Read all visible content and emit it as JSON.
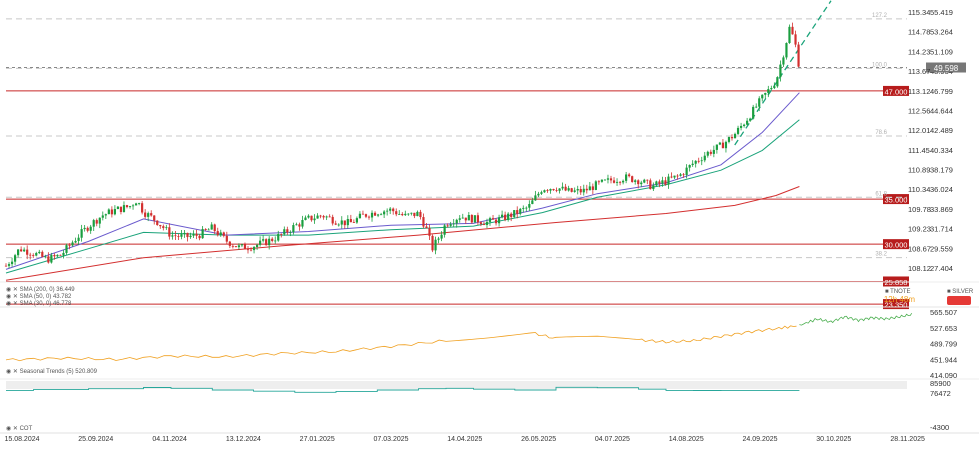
{
  "chart_data": {
    "type": "candlestick",
    "main": {
      "right_axis": [
        "55.419",
        "53.264",
        "51.109",
        "48.954",
        "46.799",
        "44.644",
        "42.489",
        "40.334",
        "38.179",
        "36.024",
        "33.869",
        "31.714",
        "29.559",
        "27.404"
      ],
      "left_axis": [
        "115.34",
        "114.78",
        "114.23",
        "113.67",
        "113.12",
        "112.56",
        "112.01",
        "111.45",
        "110.89",
        "110.34",
        "109.78",
        "109.23",
        "108.67",
        "108.12"
      ],
      "price_range": [
        25.8,
        56.2
      ],
      "last_price": "49.598",
      "horizontal_levels": [
        {
          "label": "47.000",
          "value": 47.0
        },
        {
          "label": "35.000",
          "value": 35.0
        },
        {
          "label": "30.000",
          "value": 30.0
        },
        {
          "label": "25.858",
          "value": 25.858
        },
        {
          "label": "23.350",
          "value": 23.35
        }
      ],
      "fib_levels": [
        {
          "label": "127.2",
          "value": 55.0
        },
        {
          "label": "100.0",
          "value": 49.5
        },
        {
          "label": "78.6",
          "value": 42.0
        },
        {
          "label": "61.8",
          "value": 35.2
        },
        {
          "label": "38.2",
          "value": 28.5
        }
      ],
      "legend": [
        {
          "text": "SMA (200, 0) 36.449",
          "color": "#d32f2f"
        },
        {
          "text": "SMA (50, 0) 43.782",
          "color": "#1aa37a"
        },
        {
          "text": "SMA (30, 0) 46.778",
          "color": "#6a5acd"
        }
      ],
      "symbols": [
        {
          "label": "TNOTE",
          "color": "#f0a020"
        },
        {
          "label": "SILVER",
          "color": "#1aa37a"
        }
      ],
      "countdown": "12h 48m",
      "close_series": [
        {
          "x": 0,
          "y": 27.6
        },
        {
          "x": 10,
          "y": 29.5
        },
        {
          "x": 20,
          "y": 29.0
        },
        {
          "x": 30,
          "y": 28.3
        },
        {
          "x": 40,
          "y": 28.8
        },
        {
          "x": 50,
          "y": 30.5
        },
        {
          "x": 60,
          "y": 32.0
        },
        {
          "x": 70,
          "y": 33.2
        },
        {
          "x": 80,
          "y": 33.8
        },
        {
          "x": 90,
          "y": 34.2
        },
        {
          "x": 95,
          "y": 34.9
        },
        {
          "x": 100,
          "y": 33.6
        },
        {
          "x": 110,
          "y": 32.5
        },
        {
          "x": 120,
          "y": 31.0
        },
        {
          "x": 130,
          "y": 30.8
        },
        {
          "x": 140,
          "y": 31.0
        },
        {
          "x": 150,
          "y": 31.8
        },
        {
          "x": 160,
          "y": 30.4
        },
        {
          "x": 170,
          "y": 29.6
        },
        {
          "x": 180,
          "y": 29.8
        },
        {
          "x": 190,
          "y": 30.3
        },
        {
          "x": 200,
          "y": 31.0
        },
        {
          "x": 210,
          "y": 32.0
        },
        {
          "x": 220,
          "y": 32.8
        },
        {
          "x": 230,
          "y": 33.2
        },
        {
          "x": 240,
          "y": 32.6
        },
        {
          "x": 250,
          "y": 32.3
        },
        {
          "x": 260,
          "y": 33.2
        },
        {
          "x": 270,
          "y": 33.6
        },
        {
          "x": 280,
          "y": 33.8
        },
        {
          "x": 290,
          "y": 33.1
        },
        {
          "x": 300,
          "y": 33.4
        },
        {
          "x": 305,
          "y": 32.0
        },
        {
          "x": 310,
          "y": 29.5
        },
        {
          "x": 315,
          "y": 30.8
        },
        {
          "x": 320,
          "y": 32.3
        },
        {
          "x": 330,
          "y": 33.1
        },
        {
          "x": 340,
          "y": 32.8
        },
        {
          "x": 350,
          "y": 32.4
        },
        {
          "x": 360,
          "y": 32.8
        },
        {
          "x": 370,
          "y": 33.4
        },
        {
          "x": 380,
          "y": 34.1
        },
        {
          "x": 390,
          "y": 36.2
        },
        {
          "x": 400,
          "y": 36.3
        },
        {
          "x": 410,
          "y": 35.8
        },
        {
          "x": 420,
          "y": 35.9
        },
        {
          "x": 430,
          "y": 36.6
        },
        {
          "x": 440,
          "y": 37.1
        },
        {
          "x": 450,
          "y": 37.4
        },
        {
          "x": 460,
          "y": 37.1
        },
        {
          "x": 470,
          "y": 36.4
        },
        {
          "x": 480,
          "y": 37.0
        },
        {
          "x": 490,
          "y": 37.6
        },
        {
          "x": 500,
          "y": 39.0
        },
        {
          "x": 510,
          "y": 40.1
        },
        {
          "x": 520,
          "y": 40.9
        },
        {
          "x": 530,
          "y": 42.2
        },
        {
          "x": 540,
          "y": 44.1
        },
        {
          "x": 550,
          "y": 46.2
        },
        {
          "x": 560,
          "y": 48.1
        },
        {
          "x": 566,
          "y": 51.5
        },
        {
          "x": 570,
          "y": 54.1
        },
        {
          "x": 574,
          "y": 52.2
        },
        {
          "x": 577,
          "y": 49.6
        }
      ],
      "sma200": [
        {
          "x": 0,
          "y": 26.0
        },
        {
          "x": 100,
          "y": 28.5
        },
        {
          "x": 200,
          "y": 29.8
        },
        {
          "x": 300,
          "y": 31.0
        },
        {
          "x": 400,
          "y": 32.4
        },
        {
          "x": 480,
          "y": 33.4
        },
        {
          "x": 530,
          "y": 34.3
        },
        {
          "x": 560,
          "y": 35.4
        },
        {
          "x": 577,
          "y": 36.4
        }
      ],
      "sma50": [
        {
          "x": 0,
          "y": 26.8
        },
        {
          "x": 60,
          "y": 29.5
        },
        {
          "x": 100,
          "y": 31.3
        },
        {
          "x": 160,
          "y": 31.0
        },
        {
          "x": 220,
          "y": 31.0
        },
        {
          "x": 280,
          "y": 31.6
        },
        {
          "x": 340,
          "y": 32.0
        },
        {
          "x": 390,
          "y": 33.5
        },
        {
          "x": 430,
          "y": 35.2
        },
        {
          "x": 480,
          "y": 36.6
        },
        {
          "x": 520,
          "y": 38.2
        },
        {
          "x": 550,
          "y": 40.4
        },
        {
          "x": 577,
          "y": 43.8
        }
      ],
      "sma30": [
        {
          "x": 0,
          "y": 27.2
        },
        {
          "x": 60,
          "y": 30.3
        },
        {
          "x": 100,
          "y": 32.8
        },
        {
          "x": 160,
          "y": 31.0
        },
        {
          "x": 220,
          "y": 31.4
        },
        {
          "x": 280,
          "y": 32.1
        },
        {
          "x": 340,
          "y": 32.3
        },
        {
          "x": 390,
          "y": 34.0
        },
        {
          "x": 430,
          "y": 35.6
        },
        {
          "x": 480,
          "y": 36.8
        },
        {
          "x": 520,
          "y": 38.8
        },
        {
          "x": 550,
          "y": 42.4
        },
        {
          "x": 577,
          "y": 46.8
        }
      ],
      "trendline": {
        "from": {
          "x": 530,
          "y": 41.0
        },
        "to": {
          "x": 600,
          "y": 57.0
        }
      }
    },
    "seasonal": {
      "label": "Seasonal Trends (5) 520.809",
      "axis": [
        "565.507",
        "527.653",
        "489.799",
        "451.944",
        "414.090"
      ],
      "range": [
        414.09,
        565.507
      ],
      "orange_series": [
        {
          "x": 0,
          "y": 451
        },
        {
          "x": 40,
          "y": 455
        },
        {
          "x": 80,
          "y": 452
        },
        {
          "x": 120,
          "y": 460
        },
        {
          "x": 160,
          "y": 458
        },
        {
          "x": 200,
          "y": 466
        },
        {
          "x": 240,
          "y": 470
        },
        {
          "x": 280,
          "y": 482
        },
        {
          "x": 320,
          "y": 495
        },
        {
          "x": 350,
          "y": 504
        },
        {
          "x": 380,
          "y": 515
        },
        {
          "x": 400,
          "y": 500
        },
        {
          "x": 430,
          "y": 503
        },
        {
          "x": 460,
          "y": 497
        },
        {
          "x": 480,
          "y": 492
        },
        {
          "x": 500,
          "y": 495
        },
        {
          "x": 520,
          "y": 505
        },
        {
          "x": 540,
          "y": 515
        },
        {
          "x": 560,
          "y": 523
        },
        {
          "x": 577,
          "y": 530
        }
      ],
      "green_series": [
        {
          "x": 577,
          "y": 530
        },
        {
          "x": 590,
          "y": 545
        },
        {
          "x": 600,
          "y": 538
        },
        {
          "x": 610,
          "y": 550
        },
        {
          "x": 620,
          "y": 542
        },
        {
          "x": 630,
          "y": 548
        },
        {
          "x": 640,
          "y": 545
        },
        {
          "x": 650,
          "y": 550
        },
        {
          "x": 660,
          "y": 556
        }
      ]
    },
    "cot": {
      "label": "COT",
      "axis": [
        "85900",
        "76472",
        "-4300"
      ],
      "range": [
        -4300,
        92000
      ],
      "series": [
        {
          "x": 0,
          "y": 79000
        },
        {
          "x": 20,
          "y": 81000
        },
        {
          "x": 60,
          "y": 83000
        },
        {
          "x": 100,
          "y": 86000
        },
        {
          "x": 120,
          "y": 84000
        },
        {
          "x": 150,
          "y": 80000
        },
        {
          "x": 180,
          "y": 77000
        },
        {
          "x": 210,
          "y": 74500
        },
        {
          "x": 240,
          "y": 76500
        },
        {
          "x": 270,
          "y": 80000
        },
        {
          "x": 300,
          "y": 83000
        },
        {
          "x": 320,
          "y": 84000
        },
        {
          "x": 340,
          "y": 82000
        },
        {
          "x": 370,
          "y": 80000
        },
        {
          "x": 400,
          "y": 86500
        },
        {
          "x": 430,
          "y": 85500
        },
        {
          "x": 460,
          "y": 82000
        },
        {
          "x": 480,
          "y": 79000
        },
        {
          "x": 500,
          "y": 78800
        },
        {
          "x": 520,
          "y": 78600
        },
        {
          "x": 540,
          "y": 78600
        },
        {
          "x": 577,
          "y": 78600
        }
      ]
    },
    "x_axis": {
      "ticks": [
        "15.08.2024",
        "25.09.2024",
        "04.11.2024",
        "13.12.2024",
        "27.01.2025",
        "07.03.2025",
        "14.04.2025",
        "26.05.2025",
        "04.07.2025",
        "14.08.2025",
        "24.09.2025",
        "30.10.2025",
        "28.11.2025"
      ],
      "tick_index": [
        0,
        30,
        60,
        90,
        120,
        150,
        180,
        210,
        240,
        270,
        300,
        330,
        360
      ],
      "range": [
        0,
        363
      ],
      "scale_note": "x values in main/seasonal/cot series are in units of 1/1.6 tick-steps"
    }
  }
}
